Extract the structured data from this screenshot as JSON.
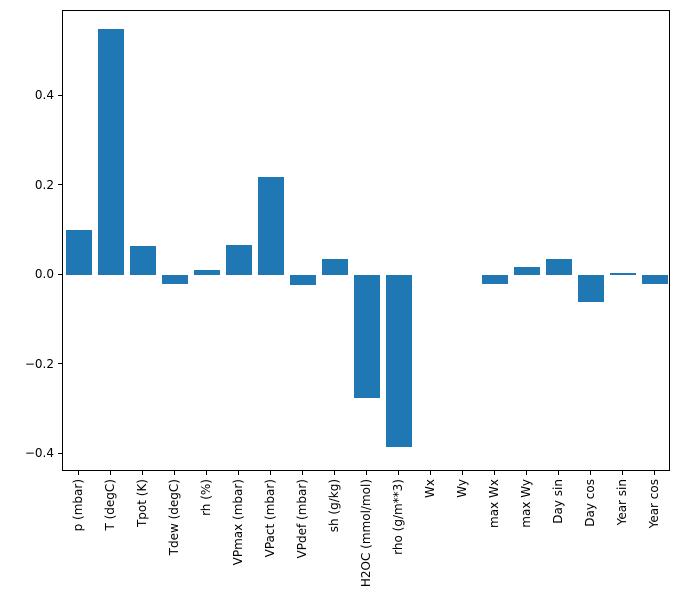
{
  "figure": {
    "background": "#ffffff",
    "bar_color": "#1f77b4",
    "axis_color": "#000000"
  },
  "chart_data": {
    "type": "bar",
    "title": "",
    "xlabel": "",
    "ylabel": "",
    "categories": [
      "p (mbar)",
      "T (degC)",
      "Tpot (K)",
      "Tdew (degC)",
      "rh (%)",
      "VPmax (mbar)",
      "VPact (mbar)",
      "VPdef (mbar)",
      "sh (g/kg)",
      "H2OC (mmol/mol)",
      "rho (g/m**3)",
      "Wx",
      "Wy",
      "max Wx",
      "max Wy",
      "Day sin",
      "Day cos",
      "Year sin",
      "Year cos"
    ],
    "values": [
      0.1,
      0.55,
      0.065,
      -0.02,
      0.012,
      0.068,
      0.22,
      -0.022,
      0.035,
      -0.275,
      -0.385,
      0.0,
      0.0,
      -0.02,
      0.018,
      0.035,
      -0.06,
      0.004,
      -0.02
    ],
    "ylim": [
      -0.44,
      0.59
    ],
    "yticks": [
      -0.4,
      -0.2,
      0.0,
      0.2,
      0.4
    ],
    "ytick_labels": [
      "−0.4",
      "−0.2",
      "0.0",
      "0.2",
      "0.4"
    ],
    "grid": false,
    "legend_position": "none",
    "bar_width_fraction": 0.8
  }
}
